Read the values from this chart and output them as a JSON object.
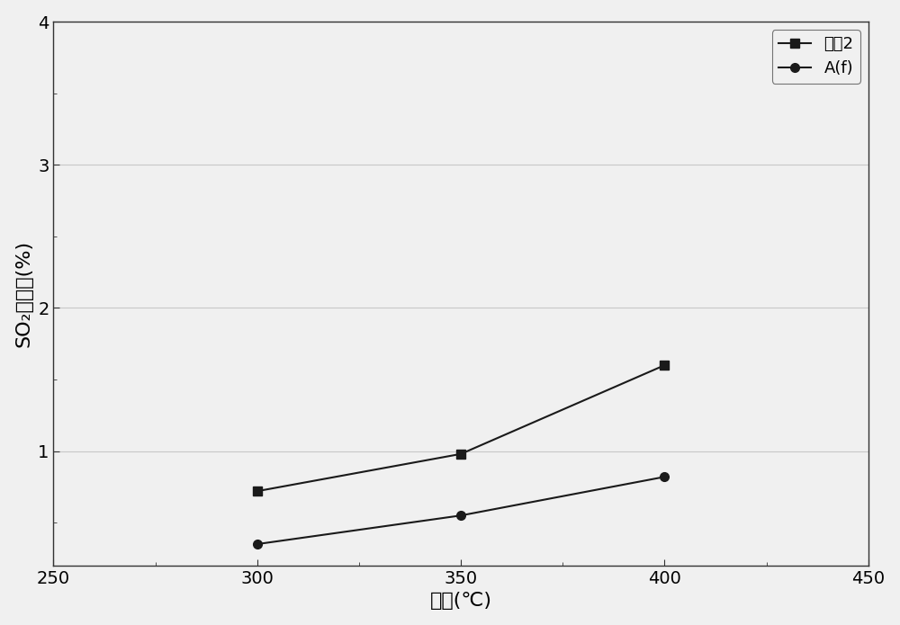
{
  "series": [
    {
      "label": "对比2",
      "x": [
        300,
        350,
        400
      ],
      "y": [
        0.72,
        0.98,
        1.6
      ],
      "marker": "s",
      "color": "#1a1a1a",
      "linewidth": 1.5,
      "markersize": 7
    },
    {
      "label": "A(f)",
      "x": [
        300,
        350,
        400
      ],
      "y": [
        0.35,
        0.55,
        0.82
      ],
      "marker": "o",
      "color": "#1a1a1a",
      "linewidth": 1.5,
      "markersize": 7
    }
  ],
  "xlabel": "温度(℃)",
  "ylabel": "SO₂氧化率(%)",
  "xlim": [
    250,
    450
  ],
  "ylim": [
    0.2,
    4.0
  ],
  "yticks": [
    1.0,
    2.0,
    3.0,
    4.0
  ],
  "xticks": [
    250,
    300,
    350,
    400,
    450
  ],
  "grid_color": "#c8c8c8",
  "background_color": "#f0f0f0",
  "legend_loc": "upper right",
  "label_fontsize": 16,
  "tick_fontsize": 14,
  "legend_fontsize": 13
}
